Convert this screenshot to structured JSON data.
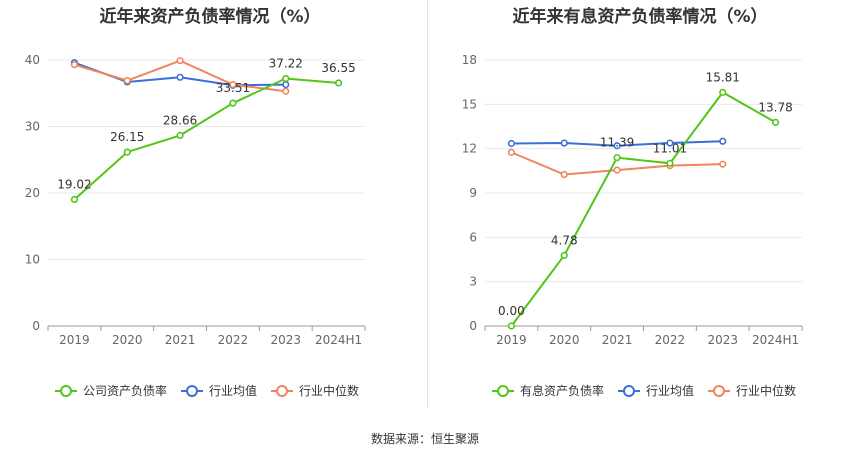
{
  "source_text": "数据来源：恒生聚源",
  "chart_data": [
    {
      "type": "line",
      "title": "近年来资产负债率情况（%）",
      "categories": [
        "2019",
        "2020",
        "2021",
        "2022",
        "2023",
        "2024H1"
      ],
      "ylim": [
        0,
        40
      ],
      "yticks": [
        "0",
        "10",
        "20",
        "30",
        "40"
      ],
      "grid": true,
      "legend_position": "bottom",
      "series": [
        {
          "name": "公司资产负债率",
          "color": "#52c41a",
          "values": [
            19.02,
            26.15,
            28.66,
            33.51,
            37.22,
            36.55
          ],
          "labels": [
            "19.02",
            "26.15",
            "28.66",
            "33.51",
            "37.22",
            "36.55"
          ]
        },
        {
          "name": "行业均值",
          "color": "#3a6fd8",
          "values": [
            39.6,
            36.7,
            37.4,
            36.2,
            36.3,
            null
          ],
          "labels": []
        },
        {
          "name": "行业中位数",
          "color": "#f0845c",
          "values": [
            39.3,
            36.9,
            39.9,
            36.3,
            35.3,
            null
          ],
          "labels": []
        }
      ]
    },
    {
      "type": "line",
      "title": "近年来有息资产负债率情况（%）",
      "categories": [
        "2019",
        "2020",
        "2021",
        "2022",
        "2023",
        "2024H1"
      ],
      "ylim": [
        0,
        18
      ],
      "yticks": [
        "0",
        "3",
        "6",
        "9",
        "12",
        "15",
        "18"
      ],
      "grid": true,
      "legend_position": "bottom",
      "series": [
        {
          "name": "有息资产负债率",
          "color": "#52c41a",
          "values": [
            0.0,
            4.78,
            11.39,
            11.01,
            15.81,
            13.78
          ],
          "labels": [
            "0.00",
            "4.78",
            "11.39",
            "11.01",
            "15.81",
            "13.78"
          ]
        },
        {
          "name": "行业均值",
          "color": "#3a6fd8",
          "values": [
            12.35,
            12.38,
            12.2,
            12.38,
            12.5,
            null
          ],
          "labels": []
        },
        {
          "name": "行业中位数",
          "color": "#f0845c",
          "values": [
            11.75,
            10.25,
            10.55,
            10.85,
            10.95,
            null
          ],
          "labels": []
        }
      ]
    }
  ]
}
